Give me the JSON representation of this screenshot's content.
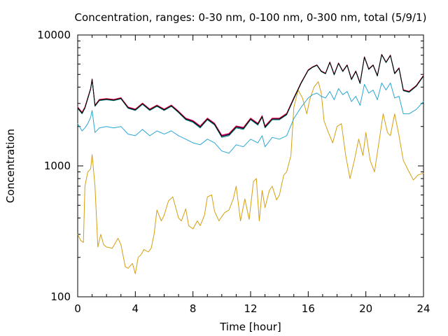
{
  "chart_data": {
    "type": "line",
    "title": "Concentration, ranges: 0-30 nm, 0-100 nm, 0-300 nm, total (5/9/1)",
    "xlabel": "Time [hour]",
    "ylabel": "Concentration",
    "xlim": [
      0,
      24
    ],
    "ylim": [
      100,
      10000
    ],
    "yscale": "log",
    "grid": false,
    "legend": "none",
    "xticks": [
      "0",
      "4",
      "8",
      "12",
      "16",
      "20",
      "24"
    ],
    "yticks": [
      "100",
      "1000",
      "10000"
    ],
    "series": [
      {
        "color": "#d4a010",
        "x": [
          0,
          0.2,
          0.4,
          0.5,
          0.7,
          0.9,
          1.0,
          1.2,
          1.4,
          1.6,
          1.8,
          2.0,
          2.4,
          2.8,
          3.0,
          3.3,
          3.5,
          3.8,
          4.0,
          4.2,
          4.4,
          4.6,
          4.9,
          5.1,
          5.3,
          5.5,
          5.8,
          6.0,
          6.3,
          6.6,
          6.9,
          7.0,
          7.2,
          7.5,
          7.7,
          8.0,
          8.3,
          8.5,
          8.8,
          9.0,
          9.3,
          9.5,
          9.8,
          10.0,
          10.2,
          10.5,
          10.8,
          11.0,
          11.3,
          11.6,
          11.9,
          12.2,
          12.4,
          12.6,
          12.8,
          13.0,
          13.3,
          13.5,
          13.8,
          14.0,
          14.3,
          14.5,
          14.8,
          15.0,
          15.3,
          15.6,
          15.9,
          16.1,
          16.4,
          16.7,
          16.9,
          17.1,
          17.4,
          17.7,
          18.0,
          18.3,
          18.6,
          18.9,
          19.2,
          19.5,
          19.8,
          20.0,
          20.3,
          20.6,
          20.9,
          21.2,
          21.5,
          21.7,
          22.0,
          22.3,
          22.6,
          23.0,
          23.3,
          23.6,
          24.0
        ],
        "y": [
          300,
          270,
          260,
          700,
          900,
          950,
          1220,
          700,
          240,
          300,
          250,
          240,
          235,
          280,
          250,
          170,
          165,
          180,
          150,
          200,
          210,
          230,
          220,
          235,
          300,
          460,
          380,
          420,
          540,
          580,
          440,
          400,
          380,
          470,
          350,
          330,
          380,
          350,
          420,
          580,
          600,
          450,
          380,
          410,
          440,
          460,
          560,
          700,
          380,
          560,
          390,
          760,
          800,
          380,
          650,
          480,
          650,
          700,
          550,
          600,
          850,
          900,
          1200,
          2800,
          3800,
          3300,
          2500,
          3200,
          4000,
          4400,
          3600,
          2200,
          1800,
          1500,
          2000,
          2100,
          1200,
          800,
          1100,
          1600,
          1200,
          1800,
          1100,
          900,
          1500,
          2500,
          1800,
          1700,
          2500,
          1700,
          1100,
          900,
          780,
          850,
          880
        ]
      },
      {
        "color": "#2aa7d2",
        "x": [
          0,
          0.3,
          0.5,
          0.7,
          0.9,
          1.0,
          1.2,
          1.5,
          2.0,
          2.5,
          3.0,
          3.5,
          4.0,
          4.5,
          5.0,
          5.5,
          6.0,
          6.5,
          7.0,
          7.5,
          8.0,
          8.5,
          9.0,
          9.5,
          10.0,
          10.5,
          11.0,
          11.5,
          12.0,
          12.5,
          12.8,
          13.0,
          13.5,
          14.0,
          14.5,
          15.0,
          15.5,
          16.0,
          16.3,
          16.6,
          16.9,
          17.2,
          17.5,
          17.8,
          18.1,
          18.4,
          18.7,
          19.0,
          19.3,
          19.6,
          19.9,
          20.2,
          20.5,
          20.8,
          21.1,
          21.4,
          21.7,
          22.0,
          22.3,
          22.6,
          23.0,
          23.5,
          24.0
        ],
        "y": [
          2100,
          1850,
          1950,
          2100,
          2350,
          2650,
          1800,
          1950,
          2000,
          1950,
          2000,
          1750,
          1700,
          1900,
          1700,
          1850,
          1750,
          1850,
          1700,
          1600,
          1500,
          1450,
          1600,
          1500,
          1300,
          1250,
          1450,
          1400,
          1600,
          1500,
          1700,
          1400,
          1650,
          1600,
          1700,
          2300,
          2800,
          3300,
          3500,
          3600,
          3400,
          3300,
          3700,
          3200,
          3900,
          3500,
          3700,
          3100,
          3400,
          2900,
          4200,
          3600,
          3800,
          3200,
          4300,
          3800,
          4300,
          3300,
          3400,
          2500,
          2500,
          2700,
          3100
        ]
      },
      {
        "color": "#6a00a8",
        "x": [
          0,
          0.3,
          0.5,
          0.7,
          0.9,
          1.0,
          1.2,
          1.5,
          2.0,
          2.5,
          3.0,
          3.5,
          4.0,
          4.5,
          5.0,
          5.5,
          6.0,
          6.5,
          7.0,
          7.5,
          8.0,
          8.5,
          9.0,
          9.5,
          10.0,
          10.5,
          11.0,
          11.5,
          12.0,
          12.5,
          12.8,
          13.0,
          13.5,
          14.0,
          14.5,
          15.0,
          15.5,
          16.0,
          16.3,
          16.6,
          16.9,
          17.2,
          17.5,
          17.8,
          18.1,
          18.4,
          18.7,
          19.0,
          19.3,
          19.6,
          19.9,
          20.2,
          20.5,
          20.8,
          21.1,
          21.4,
          21.7,
          22.0,
          22.3,
          22.6,
          23.0,
          23.5,
          24.0
        ],
        "y": [
          2800,
          2550,
          2800,
          3300,
          3900,
          4600,
          2900,
          3200,
          3250,
          3200,
          3300,
          2800,
          2700,
          3000,
          2700,
          2900,
          2700,
          2900,
          2600,
          2300,
          2200,
          2000,
          2300,
          2100,
          1700,
          1750,
          2000,
          1950,
          2300,
          2100,
          2400,
          2000,
          2300,
          2300,
          2500,
          3300,
          4300,
          5400,
          5700,
          5900,
          5300,
          5100,
          6200,
          5000,
          6100,
          5300,
          5900,
          4600,
          5300,
          4300,
          6800,
          5500,
          5900,
          4900,
          7100,
          6200,
          7000,
          5100,
          5600,
          3800,
          3700,
          4100,
          4900
        ]
      },
      {
        "color": "#e6003c",
        "x": [
          0,
          0.3,
          0.5,
          0.7,
          0.9,
          1.0,
          1.2,
          1.5,
          2.0,
          2.5,
          3.0,
          3.5,
          4.0,
          4.5,
          5.0,
          5.5,
          6.0,
          6.5,
          7.0,
          7.5,
          8.0,
          8.5,
          9.0,
          9.5,
          10.0,
          10.5,
          11.0,
          11.5,
          12.0,
          12.5,
          12.8,
          13.0,
          13.5,
          14.0,
          14.5,
          15.0,
          15.5,
          16.0,
          16.3,
          16.6,
          16.9,
          17.2,
          17.5,
          17.8,
          18.1,
          18.4,
          18.7,
          19.0,
          19.3,
          19.6,
          19.9,
          20.2,
          20.5,
          20.8,
          21.1,
          21.4,
          21.7,
          22.0,
          22.3,
          22.6,
          23.0,
          23.5,
          24.0
        ],
        "y": [
          2820,
          2570,
          2820,
          3320,
          3920,
          4620,
          2920,
          3220,
          3270,
          3220,
          3320,
          2820,
          2720,
          3020,
          2720,
          2920,
          2720,
          2920,
          2620,
          2320,
          2220,
          2020,
          2320,
          2120,
          1720,
          1770,
          2020,
          1970,
          2320,
          2120,
          2420,
          2020,
          2320,
          2320,
          2520,
          3320,
          4320,
          5420,
          5720,
          5920,
          5320,
          5120,
          6220,
          5020,
          6120,
          5320,
          5920,
          4620,
          5320,
          4320,
          6820,
          5520,
          5920,
          4920,
          7120,
          6220,
          7020,
          5120,
          5620,
          3820,
          3720,
          4120,
          4920
        ]
      },
      {
        "color": "#008080",
        "x": [
          0,
          0.3,
          0.5,
          0.7,
          0.9,
          1.0,
          1.2,
          1.5,
          2.0,
          2.5,
          3.0,
          3.5,
          4.0,
          4.5,
          5.0,
          5.5,
          6.0,
          6.5,
          7.0,
          7.5,
          8.0,
          8.5,
          9.0,
          9.5,
          10.0,
          10.5,
          11.0,
          11.5,
          12.0,
          12.5,
          12.8,
          13.0,
          13.5,
          14.0,
          14.5,
          15.0,
          15.5,
          16.0,
          16.3,
          16.6,
          16.9,
          17.2,
          17.5,
          17.8,
          18.1,
          18.4,
          18.7,
          19.0,
          19.3,
          19.6,
          19.9,
          20.2,
          20.5,
          20.8,
          21.1,
          21.4,
          21.7,
          22.0,
          22.3,
          22.6,
          23.0,
          23.5,
          24.0
        ],
        "y": [
          2750,
          2500,
          2750,
          3250,
          3850,
          4550,
          2850,
          3150,
          3200,
          3150,
          3250,
          2750,
          2650,
          2950,
          2650,
          2850,
          2650,
          2850,
          2550,
          2250,
          2150,
          1950,
          2250,
          2050,
          1650,
          1700,
          1950,
          1900,
          2250,
          2050,
          2350,
          1950,
          2250,
          2250,
          2450,
          3250,
          4250,
          5350,
          5650,
          5850,
          5250,
          5050,
          6150,
          4950,
          6050,
          5250,
          5850,
          4550,
          5250,
          4250,
          6750,
          5450,
          5850,
          4850,
          7050,
          6150,
          6950,
          5050,
          5550,
          3750,
          3650,
          4050,
          4850
        ]
      },
      {
        "color": "#000000",
        "x": [
          0,
          0.3,
          0.5,
          0.7,
          0.9,
          1.0,
          1.2,
          1.5,
          2.0,
          2.5,
          3.0,
          3.5,
          4.0,
          4.5,
          5.0,
          5.5,
          6.0,
          6.5,
          7.0,
          7.5,
          8.0,
          8.5,
          9.0,
          9.5,
          10.0,
          10.5,
          11.0,
          11.5,
          12.0,
          12.5,
          12.8,
          13.0,
          13.5,
          14.0,
          14.5,
          15.0,
          15.5,
          16.0,
          16.3,
          16.6,
          16.9,
          17.2,
          17.5,
          17.8,
          18.1,
          18.4,
          18.7,
          19.0,
          19.3,
          19.6,
          19.9,
          20.2,
          20.5,
          20.8,
          21.1,
          21.4,
          21.7,
          22.0,
          22.3,
          22.6,
          23.0,
          23.5,
          24.0
        ],
        "y": [
          2780,
          2530,
          2780,
          3280,
          3880,
          4580,
          2880,
          3180,
          3230,
          3180,
          3280,
          2780,
          2680,
          2980,
          2680,
          2880,
          2680,
          2880,
          2580,
          2280,
          2180,
          1980,
          2280,
          2080,
          1680,
          1730,
          1980,
          1930,
          2280,
          2080,
          2380,
          1980,
          2280,
          2280,
          2480,
          3280,
          4280,
          5380,
          5680,
          5880,
          5280,
          5080,
          6180,
          4980,
          6080,
          5280,
          5880,
          4580,
          5280,
          4280,
          6780,
          5480,
          5880,
          4880,
          7080,
          6180,
          6980,
          5080,
          5580,
          3780,
          3680,
          4080,
          4880
        ]
      }
    ]
  }
}
